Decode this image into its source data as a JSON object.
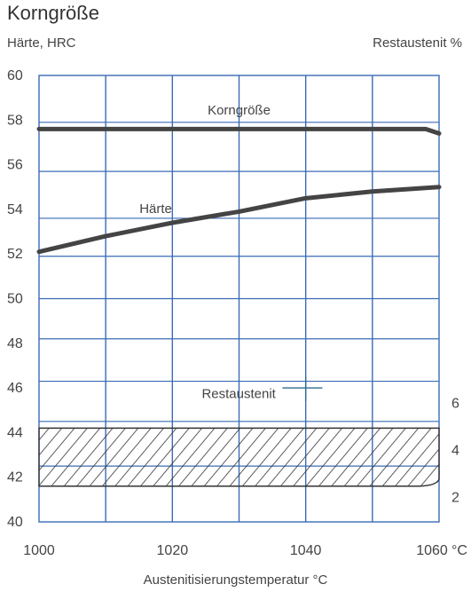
{
  "chart_data": {
    "type": "line",
    "title": "Korngröße",
    "ylabel_left": "Härte, HRC",
    "ylabel_right": "Restaustenit %",
    "xlabel": "Austenitisierungstemperatur °C",
    "x_unit": "°C",
    "xlim": [
      1000,
      1060
    ],
    "ylim": [
      40,
      60
    ],
    "x_ticks": [
      "1000",
      "1020",
      "1040",
      "1060"
    ],
    "y_ticks": [
      "40",
      "42",
      "44",
      "46",
      "48",
      "50",
      "52",
      "54",
      "56",
      "58",
      "60"
    ],
    "y_right_ticks": [
      "2",
      "4",
      "6"
    ],
    "grid": true,
    "colors": {
      "grid": "#3a6bb5",
      "line": "#444444",
      "frame": "#555555"
    },
    "series": [
      {
        "name": "Korngröße",
        "x": [
          1000,
          1058,
          1060
        ],
        "y": [
          57.6,
          57.6,
          57.4
        ]
      },
      {
        "name": "Härte",
        "x": [
          1000,
          1010,
          1020,
          1030,
          1040,
          1050,
          1060
        ],
        "y": [
          52.1,
          52.8,
          53.4,
          53.9,
          54.5,
          54.8,
          55.0
        ]
      }
    ],
    "restaustenit": {
      "label": "Restaustenit",
      "x": [
        1000,
        1060
      ],
      "y_lower": 41.6,
      "y_upper": 44.2
    }
  }
}
